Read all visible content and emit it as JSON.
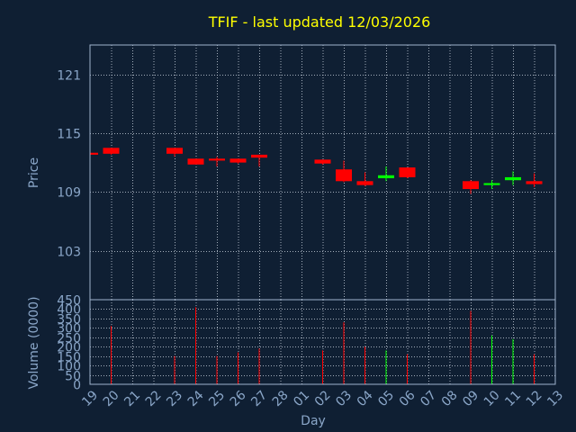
{
  "chart_data": {
    "type": "candlestick",
    "title": "TFIF - last updated 12/03/2026",
    "xlabel": "Day",
    "price_ylabel": "Price",
    "volume_ylabel": "Volume (0000)",
    "price_ylim": [
      98,
      124
    ],
    "price_ticks": [
      103,
      109,
      115,
      121
    ],
    "volume_ylim": [
      0,
      450
    ],
    "volume_ticks": [
      0,
      50,
      100,
      150,
      200,
      250,
      300,
      350,
      400,
      450
    ],
    "x_ticks": [
      "19",
      "20",
      "21",
      "22",
      "23",
      "24",
      "25",
      "26",
      "27",
      "28",
      "01",
      "02",
      "03",
      "04",
      "05",
      "06",
      "07",
      "08",
      "09",
      "10",
      "11",
      "12",
      "13"
    ],
    "grid": true,
    "colors": {
      "up": "#00ff00",
      "down": "#ff0000",
      "title": "#ffff00",
      "axis_text": "#8aa6c8",
      "background": "#0f1f33"
    },
    "candles": [
      {
        "day": "19",
        "open": 113.0,
        "high": 113.0,
        "low": 112.8,
        "close": 112.8,
        "volume": 0
      },
      {
        "day": "20",
        "open": 113.5,
        "high": 113.5,
        "low": 112.8,
        "close": 112.9,
        "volume": 310
      },
      {
        "day": "23",
        "open": 113.5,
        "high": 113.5,
        "low": 112.6,
        "close": 112.9,
        "volume": 150
      },
      {
        "day": "24",
        "open": 112.4,
        "high": 112.4,
        "low": 111.8,
        "close": 111.8,
        "volume": 410
      },
      {
        "day": "25",
        "open": 112.4,
        "high": 112.6,
        "low": 111.6,
        "close": 112.2,
        "volume": 150
      },
      {
        "day": "26",
        "open": 112.4,
        "high": 112.4,
        "low": 111.9,
        "close": 112.0,
        "volume": 170
      },
      {
        "day": "27",
        "open": 112.8,
        "high": 112.8,
        "low": 111.6,
        "close": 112.5,
        "volume": 190
      },
      {
        "day": "02",
        "open": 112.3,
        "high": 112.3,
        "low": 111.8,
        "close": 111.9,
        "volume": 180
      },
      {
        "day": "03",
        "open": 111.3,
        "high": 112.2,
        "low": 110.0,
        "close": 110.1,
        "volume": 330
      },
      {
        "day": "04",
        "open": 110.1,
        "high": 111.0,
        "low": 109.6,
        "close": 109.7,
        "volume": 200
      },
      {
        "day": "05",
        "open": 110.4,
        "high": 111.6,
        "low": 110.1,
        "close": 110.7,
        "volume": 180
      },
      {
        "day": "06",
        "open": 111.5,
        "high": 111.5,
        "low": 110.4,
        "close": 110.5,
        "volume": 160
      },
      {
        "day": "09",
        "open": 110.1,
        "high": 110.2,
        "low": 108.8,
        "close": 109.3,
        "volume": 390
      },
      {
        "day": "10",
        "open": 109.7,
        "high": 110.2,
        "low": 109.3,
        "close": 109.9,
        "volume": 260
      },
      {
        "day": "11",
        "open": 110.2,
        "high": 111.1,
        "low": 109.7,
        "close": 110.5,
        "volume": 240
      },
      {
        "day": "12",
        "open": 110.1,
        "high": 110.9,
        "low": 109.5,
        "close": 109.8,
        "volume": 160
      }
    ]
  }
}
